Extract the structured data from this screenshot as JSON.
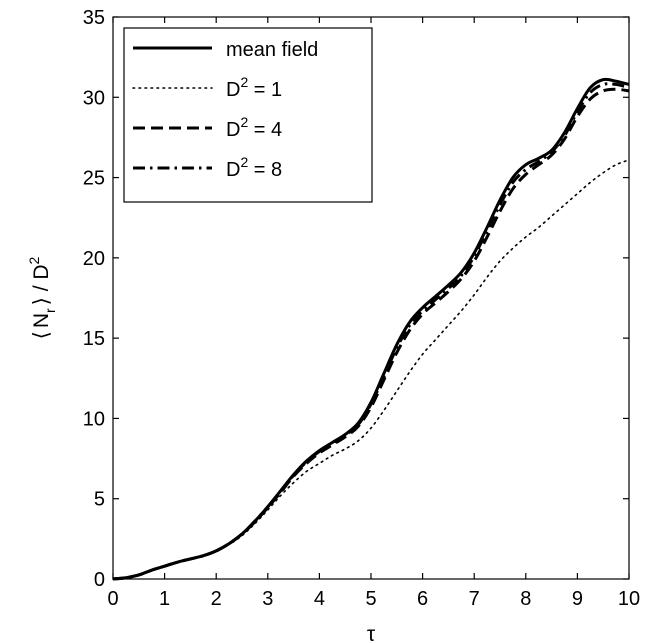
{
  "chart_data": {
    "type": "line",
    "title": "",
    "xlabel": "τ",
    "ylabel": {
      "left_bracket": "⟨",
      "base": "N",
      "sub": "r",
      "right_bracket": "⟩",
      "rest": " / D",
      "sup": "2"
    },
    "xlim": [
      0,
      10
    ],
    "ylim": [
      0,
      35
    ],
    "xticks": [
      0,
      1,
      2,
      3,
      4,
      5,
      6,
      7,
      8,
      9,
      10
    ],
    "yticks": [
      0,
      5,
      10,
      15,
      20,
      25,
      30,
      35
    ],
    "grid": false,
    "legend_position": "top-left",
    "series": [
      {
        "name": "mean field",
        "legend": {
          "base": "mean field",
          "sup": ""
        },
        "style": "solid",
        "x": [
          0,
          0.25,
          0.5,
          0.75,
          1,
          1.25,
          1.5,
          1.75,
          2,
          2.25,
          2.5,
          2.75,
          3,
          3.25,
          3.5,
          3.75,
          4,
          4.25,
          4.5,
          4.75,
          5,
          5.25,
          5.5,
          5.75,
          6,
          6.25,
          6.5,
          6.75,
          7,
          7.25,
          7.5,
          7.75,
          8,
          8.25,
          8.5,
          8.75,
          9,
          9.25,
          9.5,
          9.75,
          10
        ],
        "values": [
          0,
          0.08,
          0.25,
          0.55,
          0.8,
          1.05,
          1.25,
          1.45,
          1.75,
          2.2,
          2.8,
          3.6,
          4.5,
          5.5,
          6.5,
          7.35,
          8.0,
          8.5,
          9.0,
          9.7,
          11.0,
          12.8,
          14.6,
          16.0,
          16.9,
          17.6,
          18.3,
          19.1,
          20.3,
          21.9,
          23.6,
          25.0,
          25.8,
          26.2,
          26.7,
          27.8,
          29.3,
          30.6,
          31.1,
          31.0,
          30.8
        ]
      },
      {
        "name": "D² = 1",
        "legend": {
          "base": "D",
          "sup": "2",
          "rest": " = 1"
        },
        "style": "dotted",
        "x": [
          0,
          0.25,
          0.5,
          0.75,
          1,
          1.25,
          1.5,
          1.75,
          2,
          2.25,
          2.5,
          2.75,
          3,
          3.25,
          3.5,
          3.75,
          4,
          4.25,
          4.5,
          4.75,
          5,
          5.25,
          5.5,
          5.75,
          6,
          6.25,
          6.5,
          6.75,
          7,
          7.25,
          7.5,
          7.75,
          8,
          8.25,
          8.5,
          8.75,
          9,
          9.25,
          9.5,
          9.75,
          10
        ],
        "values": [
          0,
          0.08,
          0.25,
          0.55,
          0.8,
          1.05,
          1.25,
          1.45,
          1.75,
          2.15,
          2.7,
          3.45,
          4.3,
          5.2,
          6.0,
          6.7,
          7.2,
          7.7,
          8.1,
          8.6,
          9.4,
          10.5,
          11.7,
          12.9,
          14.0,
          14.9,
          15.8,
          16.7,
          17.7,
          18.8,
          19.8,
          20.6,
          21.3,
          21.9,
          22.6,
          23.3,
          24.0,
          24.7,
          25.3,
          25.8,
          26.1
        ]
      },
      {
        "name": "D² = 4",
        "legend": {
          "base": "D",
          "sup": "2",
          "rest": " = 4"
        },
        "style": "dashed",
        "x": [
          0,
          0.25,
          0.5,
          0.75,
          1,
          1.25,
          1.5,
          1.75,
          2,
          2.25,
          2.5,
          2.75,
          3,
          3.25,
          3.5,
          3.75,
          4,
          4.25,
          4.5,
          4.75,
          5,
          5.25,
          5.5,
          5.75,
          6,
          6.25,
          6.5,
          6.75,
          7,
          7.25,
          7.5,
          7.75,
          8,
          8.25,
          8.5,
          8.75,
          9,
          9.25,
          9.5,
          9.75,
          10
        ],
        "values": [
          0,
          0.08,
          0.25,
          0.55,
          0.8,
          1.05,
          1.25,
          1.45,
          1.75,
          2.2,
          2.8,
          3.55,
          4.45,
          5.4,
          6.4,
          7.2,
          7.85,
          8.35,
          8.85,
          9.5,
          10.7,
          12.4,
          14.1,
          15.5,
          16.5,
          17.2,
          17.9,
          18.7,
          19.8,
          21.3,
          22.9,
          24.3,
          25.2,
          25.8,
          26.4,
          27.4,
          28.8,
          29.9,
          30.4,
          30.5,
          30.4
        ]
      },
      {
        "name": "D² = 8",
        "legend": {
          "base": "D",
          "sup": "2",
          "rest": " = 8"
        },
        "style": "dashdot",
        "x": [
          0,
          0.25,
          0.5,
          0.75,
          1,
          1.25,
          1.5,
          1.75,
          2,
          2.25,
          2.5,
          2.75,
          3,
          3.25,
          3.5,
          3.75,
          4,
          4.25,
          4.5,
          4.75,
          5,
          5.25,
          5.5,
          5.75,
          6,
          6.25,
          6.5,
          6.75,
          7,
          7.25,
          7.5,
          7.75,
          8,
          8.25,
          8.5,
          8.75,
          9,
          9.25,
          9.5,
          9.75,
          10
        ],
        "values": [
          0,
          0.08,
          0.25,
          0.55,
          0.8,
          1.05,
          1.25,
          1.45,
          1.75,
          2.2,
          2.8,
          3.6,
          4.5,
          5.45,
          6.45,
          7.3,
          7.95,
          8.45,
          8.95,
          9.6,
          10.9,
          12.6,
          14.4,
          15.8,
          16.7,
          17.4,
          18.1,
          18.9,
          20.1,
          21.7,
          23.3,
          24.7,
          25.5,
          26.0,
          26.6,
          27.6,
          29.1,
          30.3,
          30.8,
          30.8,
          30.6
        ]
      }
    ]
  }
}
